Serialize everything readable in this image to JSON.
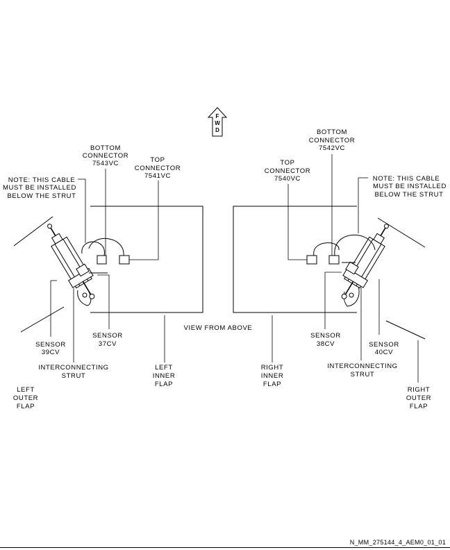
{
  "fwd_arrow": {
    "letters": [
      "F",
      "W",
      "D"
    ]
  },
  "view_title": "VIEW FROM ABOVE",
  "left": {
    "note": [
      "NOTE: THIS CABLE",
      "MUST BE INSTALLED",
      "BELOW THE STRUT"
    ],
    "bottom_connector": [
      "BOTTOM",
      "CONNECTOR",
      "7543VC"
    ],
    "top_connector": [
      "TOP",
      "CONNECTOR",
      "7541VC"
    ],
    "sensor_outer": [
      "SENSOR",
      "39CV"
    ],
    "sensor_inner": [
      "SENSOR",
      "37CV"
    ],
    "strut": [
      "INTERCONNECTING",
      "STRUT"
    ],
    "inner_flap": [
      "LEFT",
      "INNER",
      "FLAP"
    ],
    "outer_flap": [
      "LEFT",
      "OUTER",
      "FLAP"
    ]
  },
  "right": {
    "note": [
      "NOTE: THIS CABLE",
      "MUST BE INSTALLED",
      "BELOW THE STRUT"
    ],
    "bottom_connector": [
      "BOTTOM",
      "CONNECTOR",
      "7542VC"
    ],
    "top_connector": [
      "TOP",
      "CONNECTOR",
      "7540VC"
    ],
    "sensor_inner": [
      "SENSOR",
      "38CV"
    ],
    "sensor_outer": [
      "SENSOR",
      "40CV"
    ],
    "strut": [
      "INTERCONNECTING",
      "STRUT"
    ],
    "inner_flap": [
      "RIGHT",
      "INNER",
      "FLAP"
    ],
    "outer_flap": [
      "RIGHT",
      "OUTER",
      "FLAP"
    ]
  },
  "figure_id": "N_MM_275144_4_AEM0_01_01"
}
